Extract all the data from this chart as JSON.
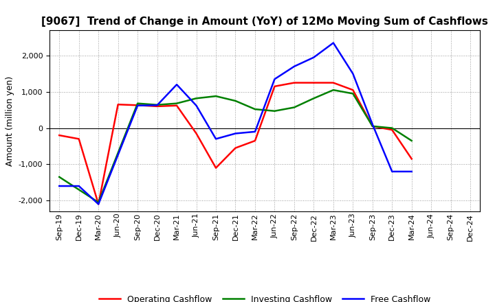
{
  "title": "[9067]  Trend of Change in Amount (YoY) of 12Mo Moving Sum of Cashflows",
  "ylabel": "Amount (million yen)",
  "x_labels": [
    "Sep-19",
    "Dec-19",
    "Mar-20",
    "Jun-20",
    "Sep-20",
    "Dec-20",
    "Mar-21",
    "Jun-21",
    "Sep-21",
    "Dec-21",
    "Mar-22",
    "Jun-22",
    "Sep-22",
    "Dec-22",
    "Mar-23",
    "Jun-23",
    "Sep-23",
    "Dec-23",
    "Mar-24",
    "Jun-24",
    "Sep-24",
    "Dec-24"
  ],
  "operating": [
    -200,
    -300,
    -2100,
    650,
    630,
    600,
    620,
    -150,
    -1100,
    -550,
    -350,
    1150,
    1250,
    1250,
    1250,
    1050,
    50,
    -50,
    -850,
    null,
    null,
    null
  ],
  "investing": [
    -1350,
    -1700,
    -2050,
    null,
    680,
    640,
    680,
    820,
    880,
    750,
    520,
    470,
    570,
    820,
    1050,
    950,
    50,
    0,
    -350,
    null,
    null,
    null
  ],
  "free": [
    -1600,
    -1600,
    -2100,
    null,
    620,
    630,
    1200,
    620,
    -300,
    -150,
    -100,
    1350,
    1700,
    1950,
    2350,
    1500,
    100,
    -1200,
    -1200,
    null,
    null,
    null
  ],
  "operating_color": "#ff0000",
  "investing_color": "#008000",
  "free_color": "#0000ff",
  "ylim": [
    -2300,
    2700
  ],
  "yticks": [
    -2000,
    -1000,
    0,
    1000,
    2000
  ],
  "background_color": "#ffffff",
  "grid_color": "#999999",
  "title_fontsize": 11,
  "ylabel_fontsize": 9,
  "tick_fontsize": 8,
  "legend_fontsize": 9,
  "linewidth": 1.8
}
